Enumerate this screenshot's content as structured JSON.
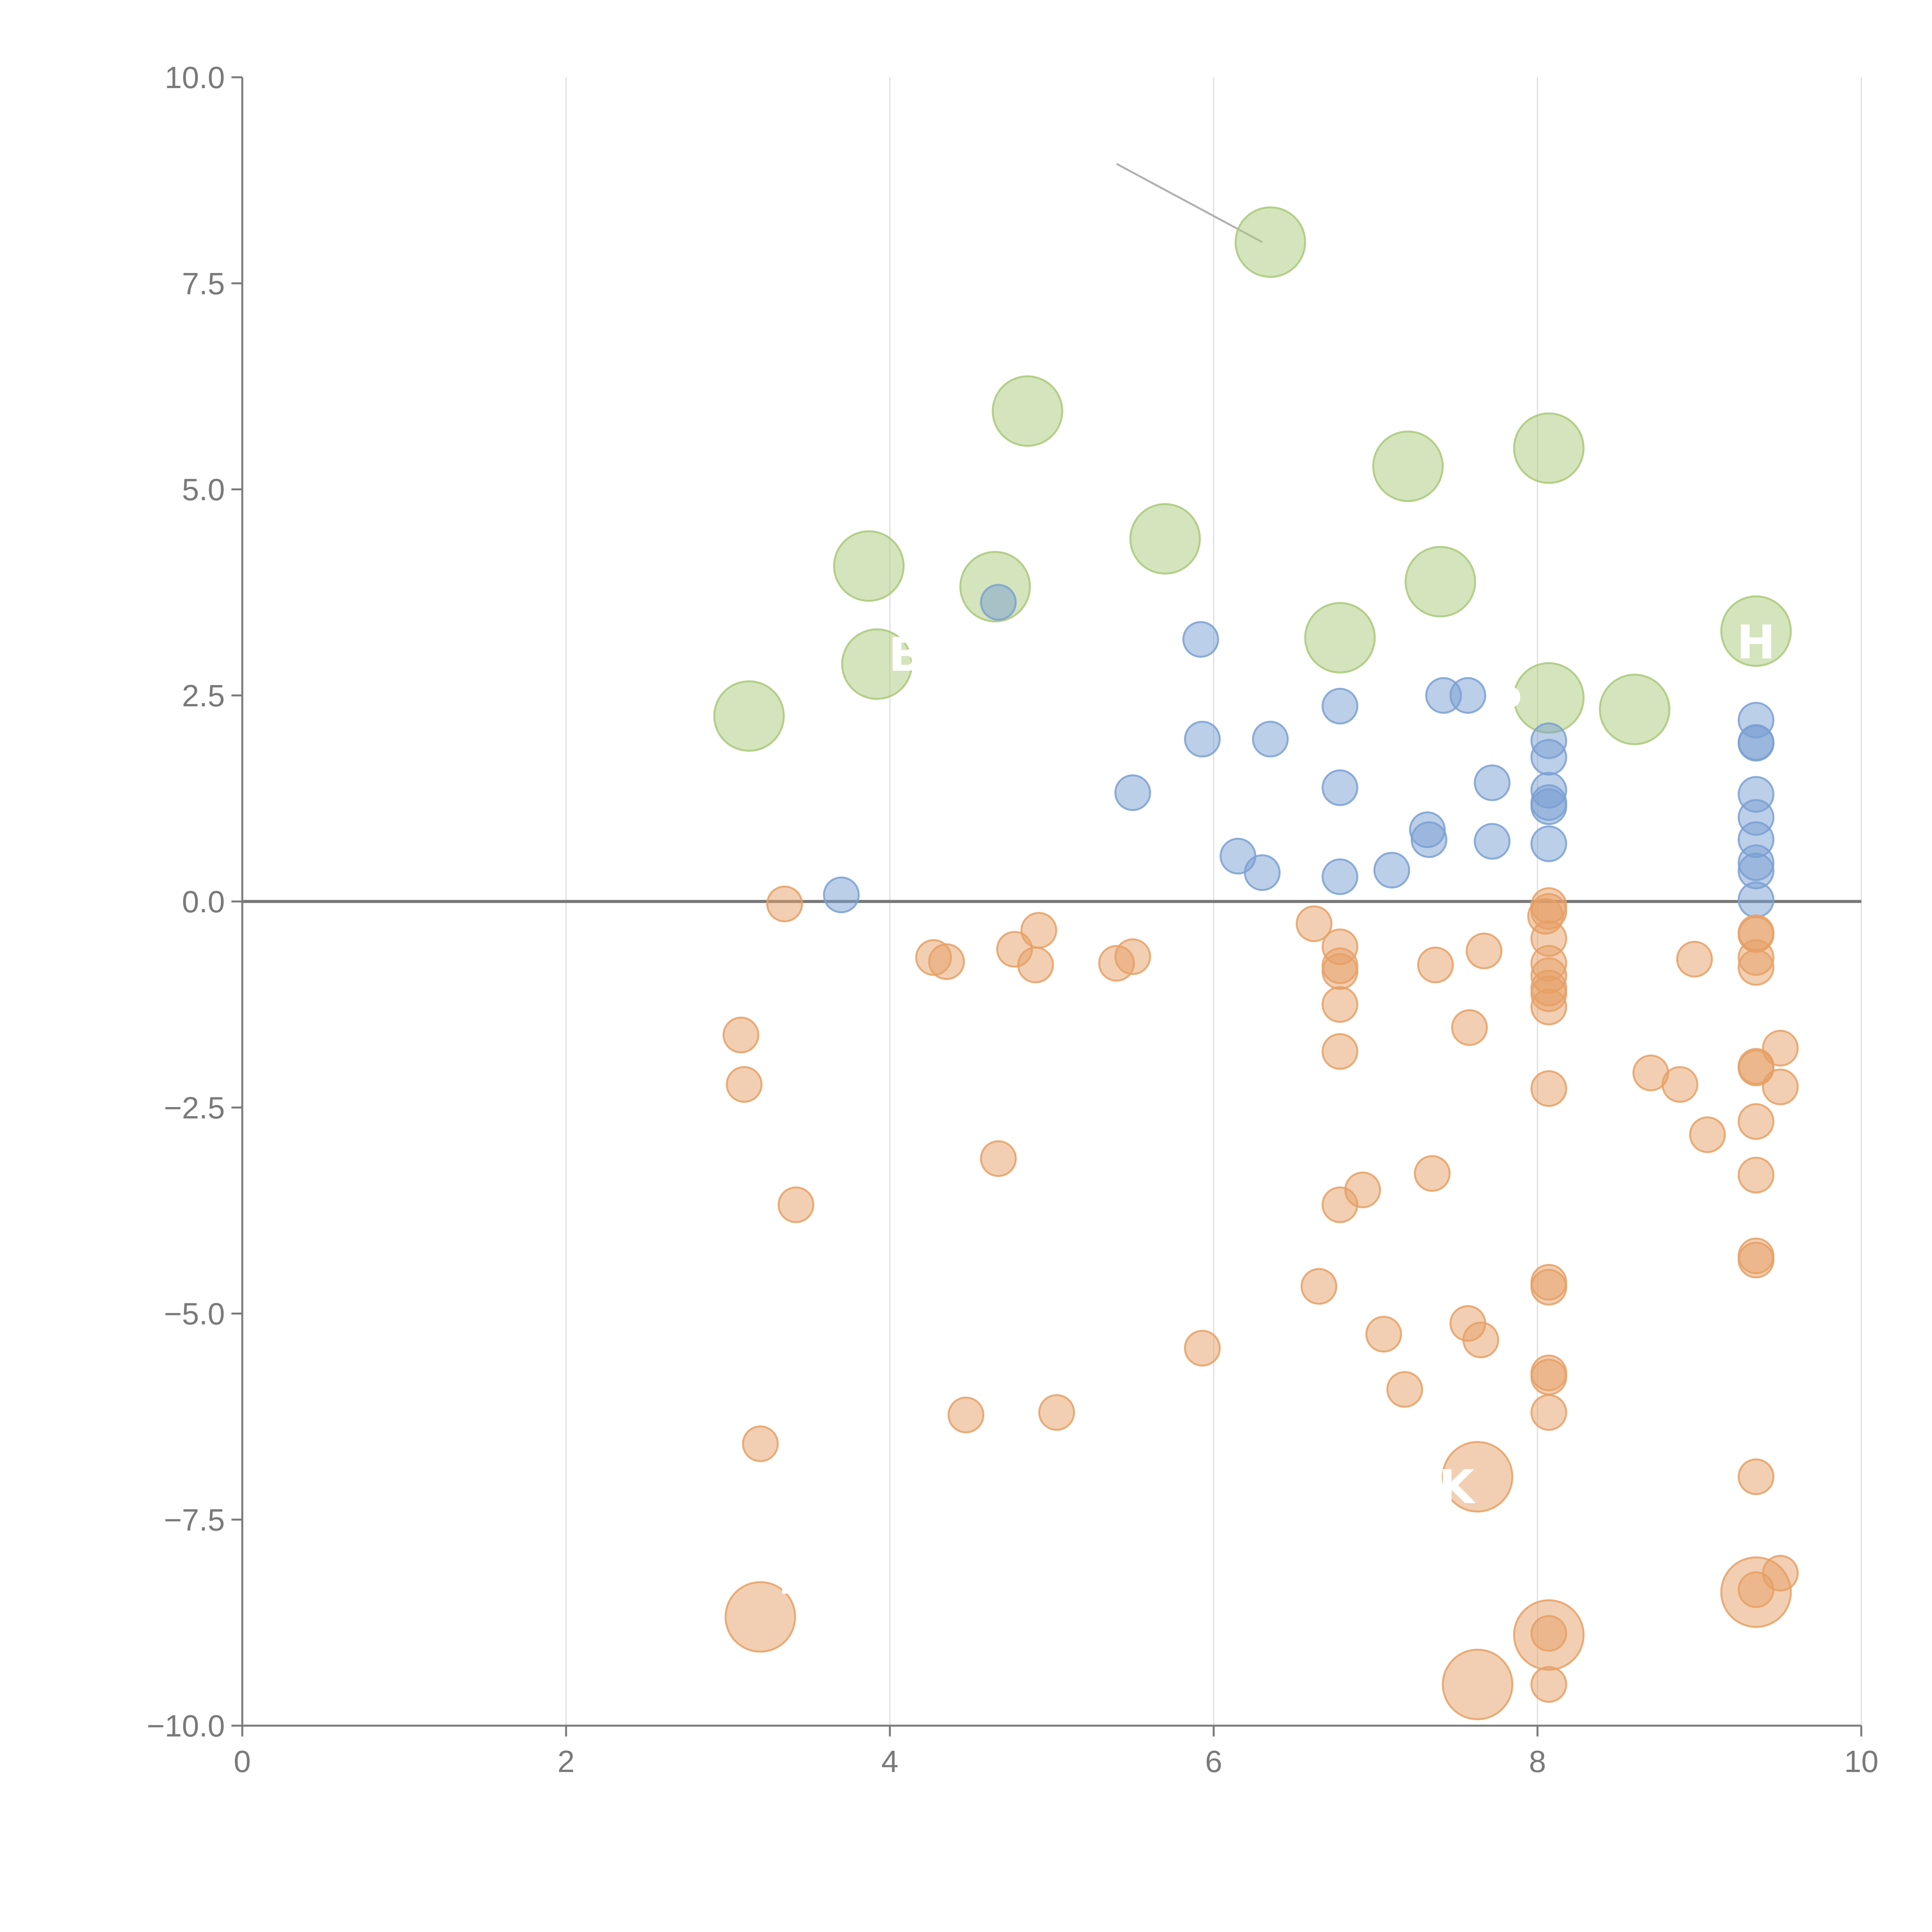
{
  "chart_data": {
    "type": "scatter",
    "title": "",
    "xlabel": "",
    "ylabel": "",
    "xlim": [
      0,
      10
    ],
    "ylim": [
      -10,
      10
    ],
    "xticks": [
      0,
      2,
      4,
      6,
      8,
      10
    ],
    "yticks": [
      -10,
      -7.5,
      -5,
      -2.5,
      0,
      2.5,
      5,
      7.5,
      10
    ],
    "xtick_labels": [
      "0",
      "2",
      "4",
      "6",
      "8",
      "10"
    ],
    "ytick_labels": [
      "−10.0",
      "−7.5",
      "−5.0",
      "−2.5",
      "0.0",
      "2.5",
      "5.0",
      "7.5",
      "10.0"
    ],
    "grid": "vertical",
    "zero_line": true,
    "colors": {
      "green": "#a9c97a",
      "blue": "#7aa0d2",
      "orange": "#e6a065",
      "axis": "#7a7a7a",
      "grid": "#dddddd",
      "zero_line": "#7a7a7a",
      "leader_line": "#b0b0b0"
    },
    "series": [
      {
        "color_key": "green",
        "size": "large",
        "points": [
          [
            6.35,
            8.0
          ],
          [
            4.85,
            5.95
          ],
          [
            7.2,
            5.28
          ],
          [
            8.07,
            5.5
          ],
          [
            5.7,
            4.4
          ],
          [
            3.87,
            4.07
          ],
          [
            4.65,
            3.82
          ],
          [
            7.4,
            3.88
          ],
          [
            6.78,
            3.2
          ],
          [
            9.35,
            3.28
          ],
          [
            3.92,
            2.88
          ],
          [
            3.13,
            2.25
          ],
          [
            8.07,
            2.47
          ],
          [
            8.6,
            2.33
          ]
        ]
      },
      {
        "color_key": "blue",
        "size": "small",
        "points": [
          [
            4.67,
            3.63
          ],
          [
            5.92,
            3.18
          ],
          [
            6.78,
            2.37
          ],
          [
            7.42,
            2.5
          ],
          [
            7.57,
            2.5
          ],
          [
            5.93,
            1.97
          ],
          [
            6.35,
            1.97
          ],
          [
            9.35,
            2.2
          ],
          [
            8.07,
            1.95
          ],
          [
            9.35,
            1.92
          ],
          [
            9.35,
            1.93
          ],
          [
            8.07,
            1.75
          ],
          [
            5.5,
            1.32
          ],
          [
            6.78,
            1.38
          ],
          [
            7.72,
            1.44
          ],
          [
            8.07,
            1.35
          ],
          [
            9.35,
            1.3
          ],
          [
            8.07,
            1.2
          ],
          [
            8.07,
            1.15
          ],
          [
            9.35,
            1.02
          ],
          [
            7.32,
            0.87
          ],
          [
            7.33,
            0.75
          ],
          [
            7.72,
            0.73
          ],
          [
            8.07,
            0.7
          ],
          [
            9.35,
            0.75
          ],
          [
            6.15,
            0.55
          ],
          [
            9.35,
            0.47
          ],
          [
            6.3,
            0.35
          ],
          [
            6.78,
            0.3
          ],
          [
            7.1,
            0.38
          ],
          [
            9.35,
            0.37
          ],
          [
            3.7,
            0.08
          ],
          [
            9.35,
            0.02
          ]
        ]
      },
      {
        "color_key": "orange",
        "size": "small",
        "points": [
          [
            3.35,
            -0.03
          ],
          [
            8.07,
            -0.05
          ],
          [
            8.07,
            -0.12
          ],
          [
            8.05,
            -0.18
          ],
          [
            6.62,
            -0.27
          ],
          [
            4.92,
            -0.35
          ],
          [
            9.35,
            -0.38
          ],
          [
            9.35,
            -0.4
          ],
          [
            8.07,
            -0.45
          ],
          [
            6.78,
            -0.55
          ],
          [
            4.77,
            -0.58
          ],
          [
            7.67,
            -0.6
          ],
          [
            9.35,
            -0.68
          ],
          [
            8.97,
            -0.7
          ],
          [
            4.27,
            -0.68
          ],
          [
            4.35,
            -0.73
          ],
          [
            5.5,
            -0.67
          ],
          [
            5.4,
            -0.75
          ],
          [
            4.9,
            -0.77
          ],
          [
            6.78,
            -0.78
          ],
          [
            7.37,
            -0.77
          ],
          [
            9.35,
            -0.8
          ],
          [
            6.78,
            -0.85
          ],
          [
            8.07,
            -0.75
          ],
          [
            8.07,
            -0.9
          ],
          [
            8.07,
            -1.05
          ],
          [
            8.07,
            -1.12
          ],
          [
            8.07,
            -1.28
          ],
          [
            6.78,
            -1.25
          ],
          [
            3.08,
            -1.62
          ],
          [
            7.58,
            -1.53
          ],
          [
            6.78,
            -1.82
          ],
          [
            9.5,
            -1.78
          ],
          [
            9.35,
            -2.0
          ],
          [
            9.35,
            -2.02
          ],
          [
            8.7,
            -2.08
          ],
          [
            8.88,
            -2.22
          ],
          [
            9.5,
            -2.25
          ],
          [
            3.1,
            -2.22
          ],
          [
            8.07,
            -2.27
          ],
          [
            9.35,
            -2.67
          ],
          [
            9.05,
            -2.83
          ],
          [
            4.67,
            -3.12
          ],
          [
            7.35,
            -3.3
          ],
          [
            9.35,
            -3.32
          ],
          [
            6.92,
            -3.5
          ],
          [
            3.42,
            -3.68
          ],
          [
            6.78,
            -3.68
          ],
          [
            9.35,
            -4.3
          ],
          [
            9.35,
            -4.35
          ],
          [
            8.07,
            -4.62
          ],
          [
            8.07,
            -4.68
          ],
          [
            6.65,
            -4.67
          ],
          [
            7.57,
            -5.12
          ],
          [
            7.05,
            -5.25
          ],
          [
            7.65,
            -5.32
          ],
          [
            5.93,
            -5.42
          ],
          [
            8.07,
            -5.72
          ],
          [
            8.07,
            -5.77
          ],
          [
            7.18,
            -5.92
          ],
          [
            4.47,
            -6.23
          ],
          [
            5.03,
            -6.2
          ],
          [
            8.07,
            -6.2
          ],
          [
            3.2,
            -6.58
          ],
          [
            9.35,
            -6.98
          ],
          [
            9.5,
            -8.15
          ],
          [
            9.35,
            -8.35
          ],
          [
            8.07,
            -8.88
          ],
          [
            8.07,
            -9.5
          ]
        ]
      },
      {
        "color_key": "orange",
        "size": "large",
        "points": [
          [
            7.63,
            -6.98
          ],
          [
            3.2,
            -8.68
          ],
          [
            9.35,
            -8.38
          ],
          [
            8.07,
            -8.9
          ],
          [
            7.63,
            -9.5
          ]
        ]
      }
    ],
    "annotations": [
      {
        "text": "K",
        "x": 7.5,
        "y": -7.3
      },
      {
        "text": "L",
        "x": 3.4,
        "y": -8.4
      },
      {
        "text": "B",
        "x": 4.1,
        "y": 2.8
      },
      {
        "text": "P",
        "x": 7.8,
        "y": 2.2
      },
      {
        "text": "H",
        "x": 9.35,
        "y": 2.95
      }
    ],
    "callout": {
      "from": [
        5.4,
        8.95
      ],
      "to": [
        6.3,
        8.0
      ]
    }
  }
}
